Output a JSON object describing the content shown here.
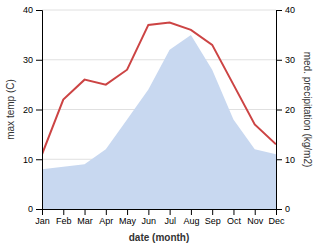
{
  "chart_data": {
    "type": "line",
    "categories": [
      "Jan",
      "Feb",
      "Mar",
      "Apr",
      "May",
      "Jun",
      "Jul",
      "Aug",
      "Sep",
      "Oct",
      "Nov",
      "Dec"
    ],
    "xlabel": "date (month)",
    "ylabel": "max temp (C)",
    "y2label": "med. precipitation (kg/m2)",
    "series": [
      {
        "type": "area",
        "axis": "y2",
        "color": "#c8d8f0",
        "values": [
          8,
          8.5,
          9,
          12,
          18,
          24,
          32,
          35,
          28,
          18,
          12,
          11
        ]
      },
      {
        "type": "line",
        "color": "#cc4444",
        "values": [
          11,
          22,
          26,
          25,
          28,
          37,
          37.5,
          36,
          33,
          25,
          17,
          13
        ]
      }
    ],
    "ylim": [
      0,
      40
    ],
    "yticks": [
      0,
      10,
      20,
      30,
      40
    ],
    "y2lim": [
      0,
      40
    ],
    "y2ticks": [
      0,
      10,
      20,
      30,
      40
    ],
    "grid": true
  }
}
